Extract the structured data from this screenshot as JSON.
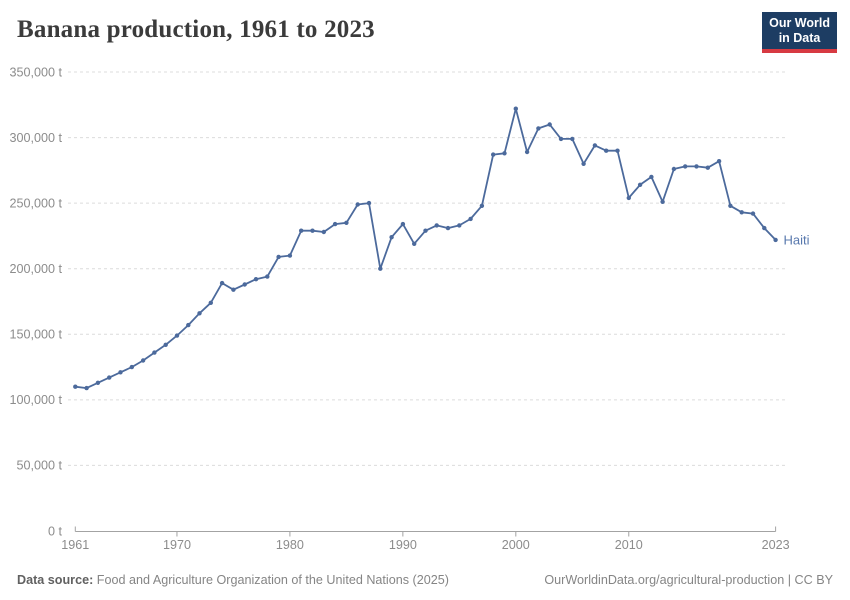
{
  "header": {
    "title": "Banana production, 1961 to 2023"
  },
  "logo": {
    "line1": "Our World",
    "line2": "in Data"
  },
  "footer": {
    "source_label": "Data source:",
    "source_text": " Food and Agriculture Organization of the United Nations (2025)",
    "link_text": "OurWorldinData.org/agricultural-production | CC BY"
  },
  "colors": {
    "line": "#4c6a9c",
    "entity_label": "#5878ad",
    "grid": "#dcdcdc",
    "axis": "#a3a3a3",
    "tick_text": "#8c8c8c",
    "logo_bg": "#1d3d63",
    "logo_red": "#d73a42",
    "title_text": "#3b3b3b"
  },
  "chart_data": {
    "type": "line",
    "title": "Banana production, 1961 to 2023",
    "entity_label": "Haiti",
    "unit": "t",
    "xlim": [
      1961,
      2023
    ],
    "ylim": [
      0,
      350000
    ],
    "grid": "horizontal-dashed",
    "legend_position": "line-end-label",
    "x_ticks": [
      1961,
      1970,
      1980,
      1990,
      2000,
      2010,
      2023
    ],
    "y_ticks": [
      0,
      50000,
      100000,
      150000,
      200000,
      250000,
      300000,
      350000
    ],
    "y_tick_labels": [
      "0 t",
      "50,000 t",
      "100,000 t",
      "150,000 t",
      "200,000 t",
      "250,000 t",
      "300,000 t",
      "350,000 t"
    ],
    "x": [
      1961,
      1962,
      1963,
      1964,
      1965,
      1966,
      1967,
      1968,
      1969,
      1970,
      1971,
      1972,
      1973,
      1974,
      1975,
      1976,
      1977,
      1978,
      1979,
      1980,
      1981,
      1982,
      1983,
      1984,
      1985,
      1986,
      1987,
      1988,
      1989,
      1990,
      1991,
      1992,
      1993,
      1994,
      1995,
      1996,
      1997,
      1998,
      1999,
      2000,
      2001,
      2002,
      2003,
      2004,
      2005,
      2006,
      2007,
      2008,
      2009,
      2010,
      2011,
      2012,
      2013,
      2014,
      2015,
      2016,
      2017,
      2018,
      2019,
      2020,
      2021,
      2022,
      2023
    ],
    "series": [
      {
        "name": "Haiti",
        "values": [
          110000,
          109000,
          113000,
          117000,
          121000,
          125000,
          130000,
          136000,
          142000,
          149000,
          157000,
          166000,
          174000,
          189000,
          184000,
          188000,
          192000,
          194000,
          209000,
          210000,
          229000,
          229000,
          228000,
          234000,
          235000,
          249000,
          250000,
          200000,
          224000,
          234000,
          219000,
          229000,
          233000,
          231000,
          233000,
          238000,
          248000,
          287000,
          288000,
          322000,
          289000,
          307000,
          310000,
          299000,
          299000,
          280000,
          294000,
          290000,
          290000,
          254000,
          264000,
          270000,
          251000,
          276000,
          278000,
          278000,
          277000,
          282000,
          248000,
          243000,
          242000,
          231000,
          222000
        ]
      }
    ]
  }
}
